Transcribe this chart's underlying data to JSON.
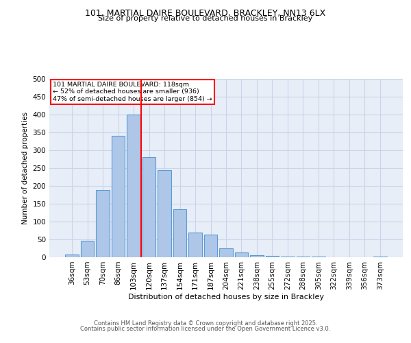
{
  "title1": "101, MARTIAL DAIRE BOULEVARD, BRACKLEY, NN13 6LX",
  "title2": "Size of property relative to detached houses in Brackley",
  "xlabel": "Distribution of detached houses by size in Brackley",
  "ylabel": "Number of detached properties",
  "bar_labels": [
    "36sqm",
    "53sqm",
    "70sqm",
    "86sqm",
    "103sqm",
    "120sqm",
    "137sqm",
    "154sqm",
    "171sqm",
    "187sqm",
    "204sqm",
    "221sqm",
    "238sqm",
    "255sqm",
    "272sqm",
    "288sqm",
    "305sqm",
    "322sqm",
    "339sqm",
    "356sqm",
    "373sqm"
  ],
  "bar_values": [
    8,
    46,
    188,
    340,
    400,
    280,
    245,
    135,
    70,
    63,
    25,
    13,
    6,
    4,
    2,
    1,
    1,
    0,
    0,
    0,
    2
  ],
  "bar_color": "#aec6e8",
  "bar_edge_color": "#5b9bd5",
  "grid_color": "#c8d4e8",
  "background_color": "#e8eef8",
  "vline_color": "red",
  "vline_index": 4.5,
  "annotation_text": "101 MARTIAL DAIRE BOULEVARD: 118sqm\n← 52% of detached houses are smaller (936)\n47% of semi-detached houses are larger (854) →",
  "annotation_box_color": "white",
  "annotation_box_edge_color": "red",
  "ylim": [
    0,
    500
  ],
  "yticks": [
    0,
    50,
    100,
    150,
    200,
    250,
    300,
    350,
    400,
    450,
    500
  ],
  "footer1": "Contains HM Land Registry data © Crown copyright and database right 2025.",
  "footer2": "Contains public sector information licensed under the Open Government Licence v3.0."
}
